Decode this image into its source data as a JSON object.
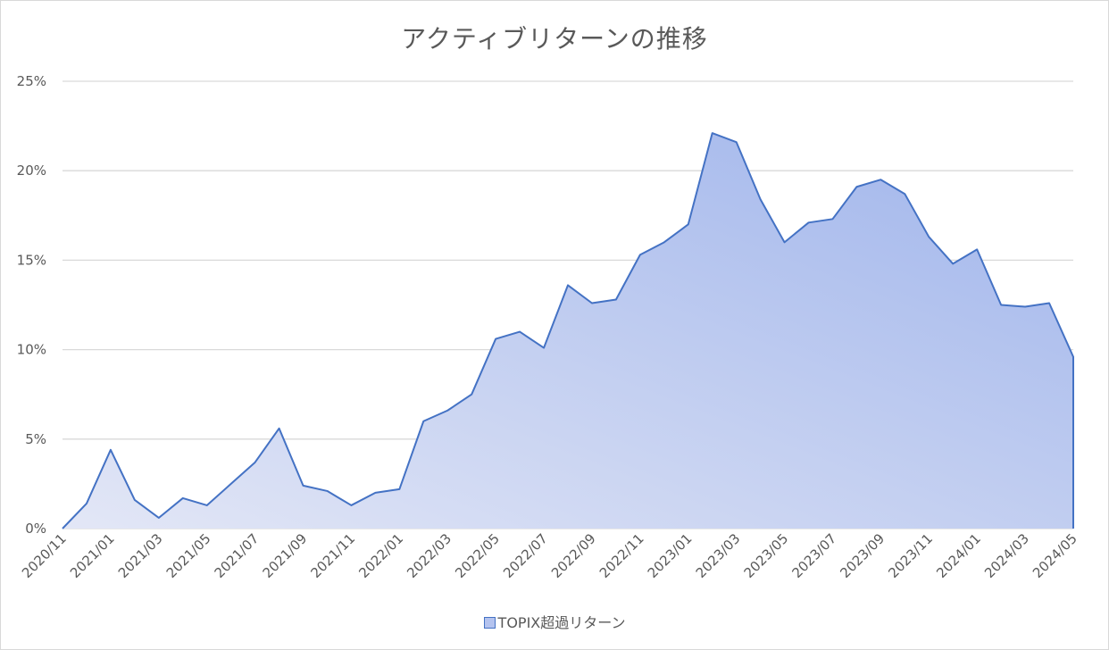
{
  "chart_data": {
    "type": "area",
    "title": "アクティブリターンの推移",
    "ylim": [
      0,
      25
    ],
    "yticks": [
      0,
      5,
      10,
      15,
      20,
      25
    ],
    "ytick_labels": [
      "0%",
      "5%",
      "10%",
      "15%",
      "20%",
      "25%"
    ],
    "x": [
      "2020/11",
      "2020/12",
      "2021/01",
      "2021/02",
      "2021/03",
      "2021/04",
      "2021/05",
      "2021/06",
      "2021/07",
      "2021/08",
      "2021/09",
      "2021/10",
      "2021/11",
      "2021/12",
      "2022/01",
      "2022/02",
      "2022/03",
      "2022/04",
      "2022/05",
      "2022/06",
      "2022/07",
      "2022/08",
      "2022/09",
      "2022/10",
      "2022/11",
      "2022/12",
      "2023/01",
      "2023/02",
      "2023/03",
      "2023/04",
      "2023/05",
      "2023/06",
      "2023/07",
      "2023/08",
      "2023/09",
      "2023/10",
      "2023/11",
      "2023/12",
      "2024/01",
      "2024/02",
      "2024/03",
      "2024/04",
      "2024/05"
    ],
    "xtick_labels": [
      "2020/11",
      "2021/01",
      "2021/03",
      "2021/05",
      "2021/07",
      "2021/09",
      "2021/11",
      "2022/01",
      "2022/03",
      "2022/05",
      "2022/07",
      "2022/09",
      "2022/11",
      "2023/01",
      "2023/03",
      "2023/05",
      "2023/07",
      "2023/09",
      "2023/11",
      "2024/01",
      "2024/03",
      "2024/05"
    ],
    "series": [
      {
        "name": "TOPIX超過リターン",
        "values": [
          0.0,
          1.4,
          4.4,
          1.6,
          0.6,
          1.7,
          1.3,
          2.5,
          3.7,
          5.6,
          2.4,
          2.1,
          1.3,
          2.0,
          2.2,
          6.0,
          6.6,
          7.5,
          10.6,
          11.0,
          10.1,
          13.6,
          12.6,
          12.8,
          15.3,
          16.0,
          17.0,
          22.1,
          21.6,
          18.4,
          16.0,
          17.1,
          17.3,
          19.1,
          19.5,
          18.7,
          16.3,
          14.8,
          15.6,
          12.5,
          12.4,
          12.6,
          9.6
        ]
      }
    ],
    "legend_position": "bottom",
    "grid": true,
    "colors": {
      "line": "#4472c4",
      "fill_start": "#e3e7f6",
      "fill_end": "#9fb4eb",
      "grid": "#d9d9d9",
      "text": "#595959"
    }
  }
}
